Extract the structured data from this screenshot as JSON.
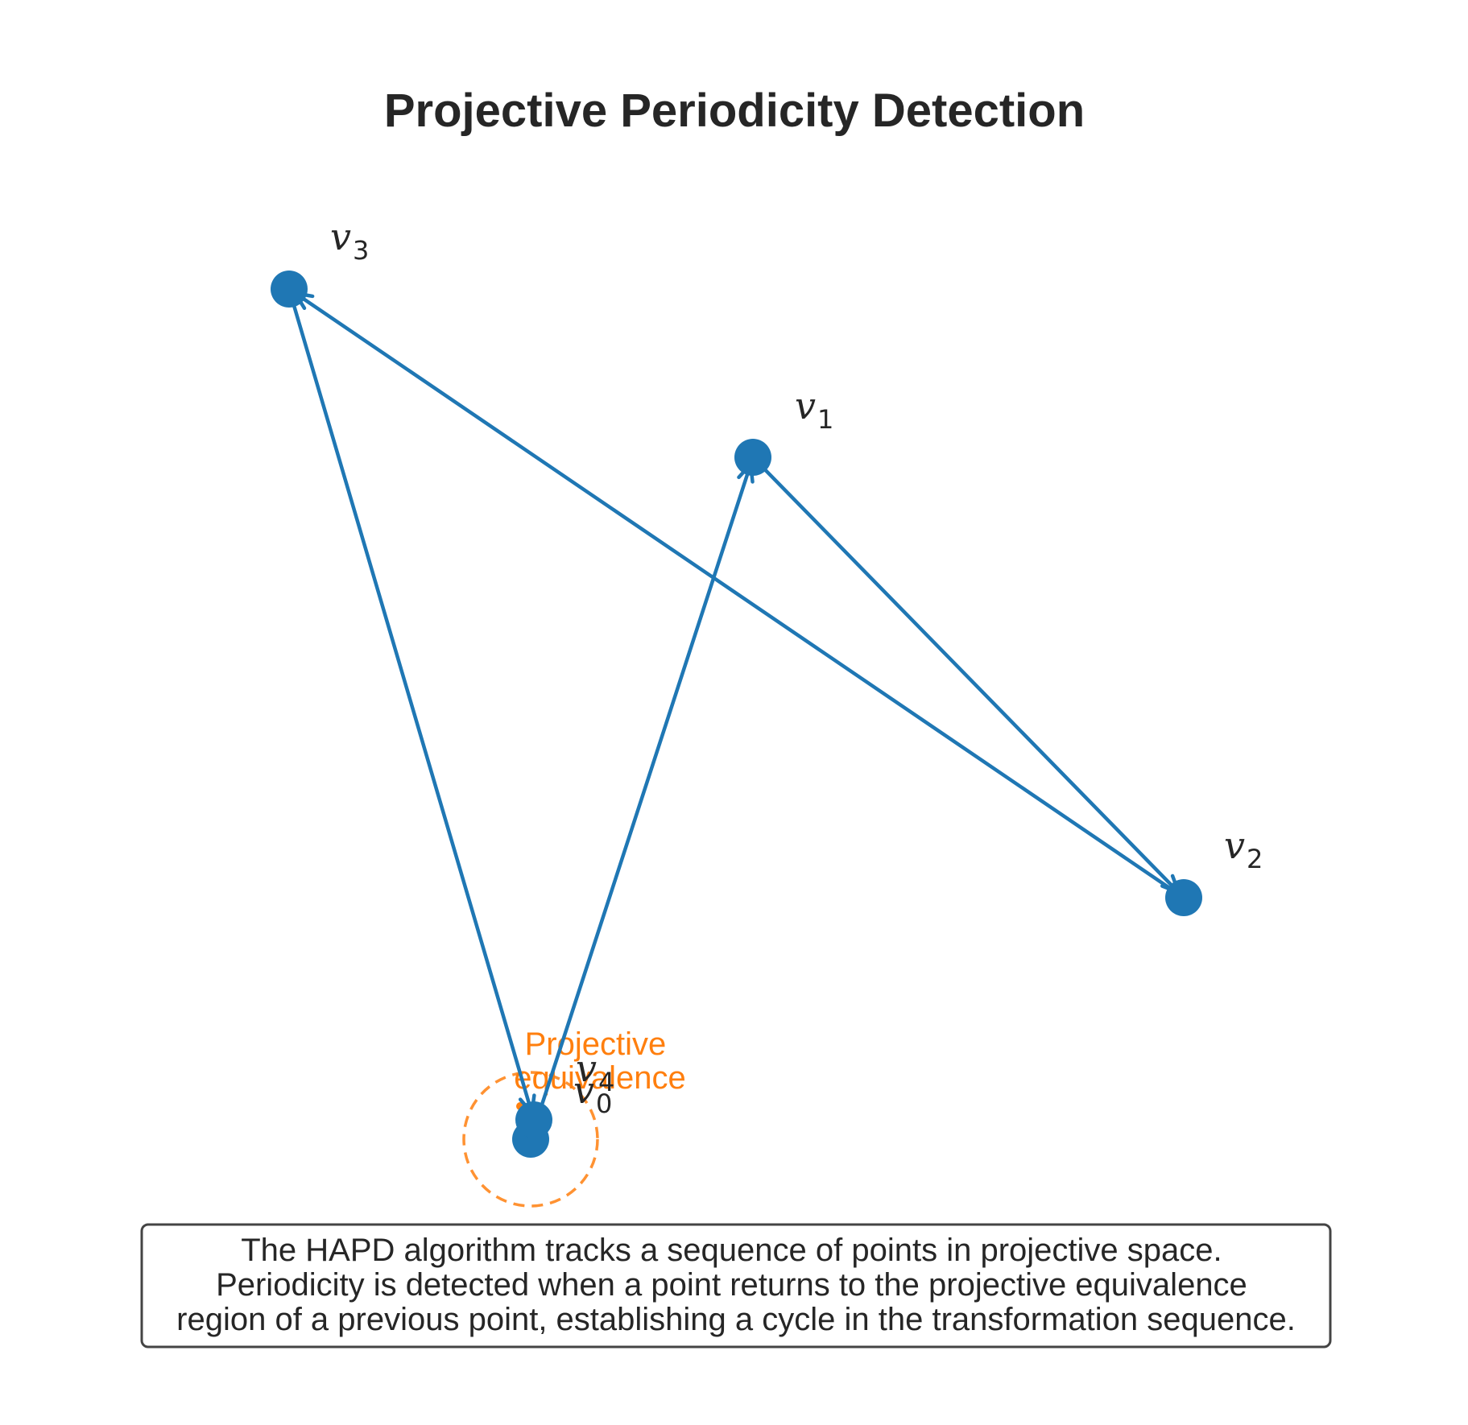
{
  "title": "Projective Periodicity Detection",
  "colors": {
    "node": "#1f77b4",
    "edge": "#1f77b4",
    "equivalence": "#ff7f0e",
    "text": "#262626",
    "caption_border": "#444444"
  },
  "nodes": [
    {
      "id": "v0",
      "base": "v",
      "sub": "0"
    },
    {
      "id": "v1",
      "base": "v",
      "sub": "1"
    },
    {
      "id": "v2",
      "base": "v",
      "sub": "2"
    },
    {
      "id": "v3",
      "base": "v",
      "sub": "3"
    },
    {
      "id": "v4",
      "base": "v",
      "sub": "4"
    }
  ],
  "edges": [
    {
      "from": "v0",
      "to": "v1"
    },
    {
      "from": "v1",
      "to": "v2"
    },
    {
      "from": "v2",
      "to": "v3"
    },
    {
      "from": "v3",
      "to": "v4"
    }
  ],
  "equivalence_region": {
    "center_node": "v0",
    "style": "dashed",
    "label_lines": [
      "Projective",
      "equivalence"
    ]
  },
  "caption": {
    "lines": [
      "The HAPD algorithm tracks a sequence of points in projective space.",
      "Periodicity is detected when a point returns to the projective equivalence",
      "region of a previous point, establishing a cycle in the transformation sequence."
    ]
  }
}
